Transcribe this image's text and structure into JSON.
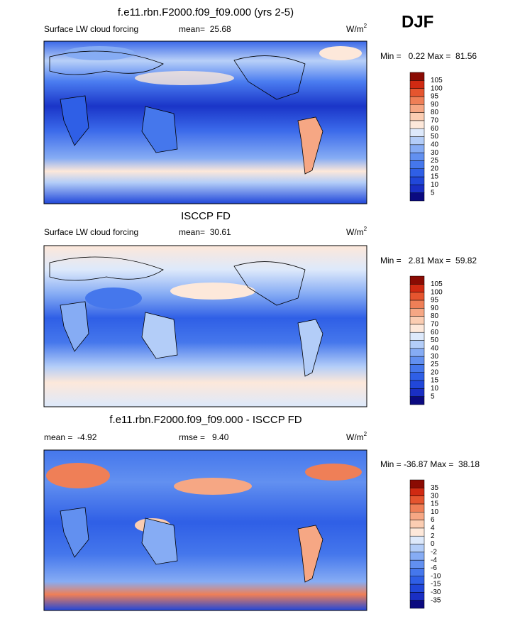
{
  "season": "DJF",
  "colorbar_colors": [
    "#0b0a80",
    "#1a2fc4",
    "#2147d9",
    "#2f5fe6",
    "#4577ec",
    "#6290f0",
    "#86acf4",
    "#b3cdf8",
    "#dde9fb",
    "#fde8da",
    "#fbcdb2",
    "#f6a784",
    "#ef7f57",
    "#e5552f",
    "#d02a12",
    "#8a0b03"
  ],
  "panels": [
    {
      "title": "f.e11.rbn.F2000.f09_f09.000 (yrs 2-5)",
      "left_label": "Surface LW cloud forcing",
      "center_label": "mean=  25.68",
      "units": "W/m",
      "units_sup": "2",
      "minmax": "Min =   0.22 Max =  81.56",
      "colorbar_labels": [
        5,
        10,
        15,
        20,
        25,
        30,
        40,
        50,
        60,
        70,
        80,
        90,
        95,
        100,
        105
      ]
    },
    {
      "title": "ISCCP FD",
      "left_label": "Surface LW cloud forcing",
      "center_label": "mean=  30.61",
      "units": "W/m",
      "units_sup": "2",
      "minmax": "Min =   2.81 Max =  59.82",
      "colorbar_labels": [
        5,
        10,
        15,
        20,
        25,
        30,
        40,
        50,
        60,
        70,
        80,
        90,
        95,
        100,
        105
      ]
    },
    {
      "title": "f.e11.rbn.F2000.f09_f09.000 - ISCCP FD",
      "left_label": "mean =  -4.92",
      "center_label": "rmse =   9.40",
      "units": "W/m",
      "units_sup": "2",
      "minmax": "Min = -36.87 Max =  38.18",
      "colorbar_labels": [
        -35,
        -30,
        -15,
        -10,
        -6,
        -4,
        -2,
        0,
        2,
        4,
        6,
        10,
        15,
        30,
        35
      ]
    }
  ]
}
